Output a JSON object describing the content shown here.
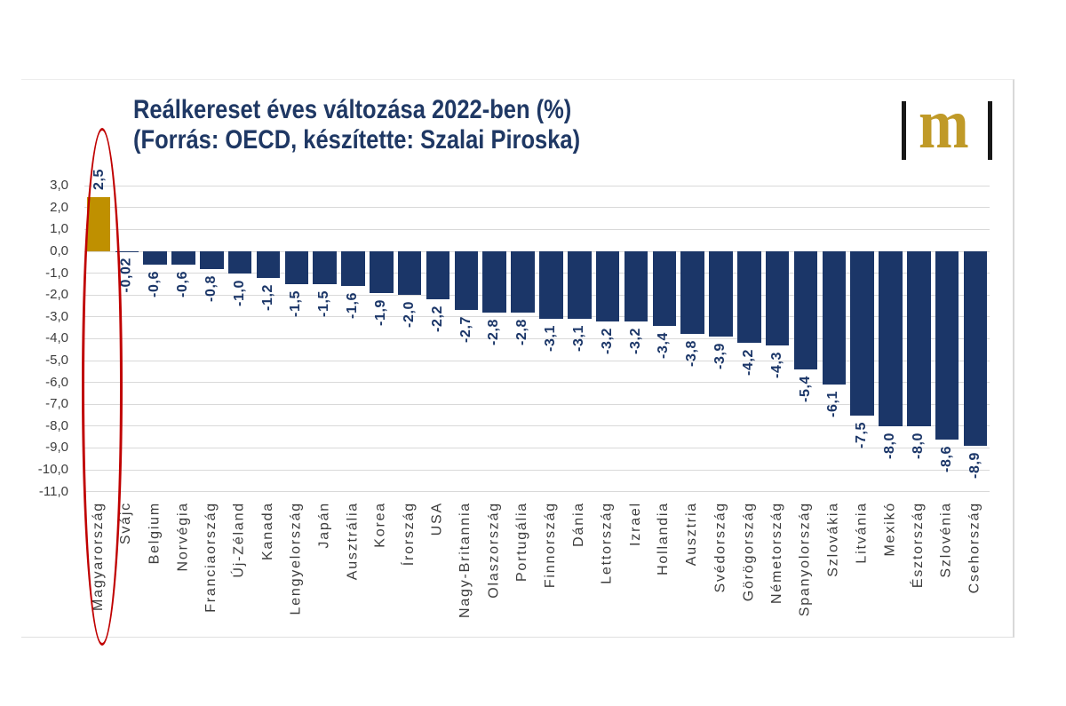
{
  "title": {
    "line1": "Reálkereset éves változása 2022-ben (%)",
    "line2": "(Forrás: OECD, készítette: Szalai Piroska)"
  },
  "logo": {
    "letter": "m",
    "letter_color": "#c09a28",
    "bar_color": "#181818"
  },
  "chart_data": {
    "type": "bar",
    "title": "Reálkereset éves változása 2022-ben (%)",
    "subtitle": "(Forrás: OECD, készítette: Szalai Piroska)",
    "categories": [
      "Magyarország",
      "Svájc",
      "Belgium",
      "Norvégia",
      "Franciaország",
      "Új-Zéland",
      "Kanada",
      "Lengyelország",
      "Japán",
      "Ausztrália",
      "Korea",
      "Írország",
      "USA",
      "Nagy-Britannia",
      "Olaszország",
      "Portugália",
      "Finnország",
      "Dánia",
      "Lettország",
      "Izrael",
      "Hollandia",
      "Ausztria",
      "Svédország",
      "Görögország",
      "Németország",
      "Spanyolország",
      "Szlovákia",
      "Litvánia",
      "Mexikó",
      "Észtország",
      "Szlovénia",
      "Csehország"
    ],
    "values": [
      2.5,
      -0.02,
      -0.6,
      -0.6,
      -0.8,
      -1.0,
      -1.2,
      -1.5,
      -1.5,
      -1.6,
      -1.9,
      -2.0,
      -2.2,
      -2.7,
      -2.8,
      -2.8,
      -3.1,
      -3.1,
      -3.2,
      -3.2,
      -3.4,
      -3.8,
      -3.9,
      -4.2,
      -4.3,
      -5.4,
      -6.1,
      -7.5,
      -8.0,
      -8.0,
      -8.6,
      -8.9
    ],
    "value_labels": [
      "2,5",
      "-0,02",
      "-0,6",
      "-0,6",
      "-0,8",
      "-1,0",
      "-1,2",
      "-1,5",
      "-1,5",
      "-1,6",
      "-1,9",
      "-2,0",
      "-2,2",
      "-2,7",
      "-2,8",
      "-2,8",
      "-3,1",
      "-3,1",
      "-3,2",
      "-3,2",
      "-3,4",
      "-3,8",
      "-3,9",
      "-4,2",
      "-4,3",
      "-5,4",
      "-6,1",
      "-7,5",
      "-8,0",
      "-8,0",
      "-8,6",
      "-8,9"
    ],
    "ylim": [
      -11,
      3
    ],
    "ytick_step": 1,
    "ytick_labels": [
      "3,0",
      "2,0",
      "1,0",
      "0,0",
      "-1,0",
      "-2,0",
      "-3,0",
      "-4,0",
      "-5,0",
      "-6,0",
      "-7,0",
      "-8,0",
      "-9,0",
      "-10,0",
      "-11,0"
    ],
    "grid": true,
    "legend": "none",
    "bar_color": "#1b3668",
    "highlight_index": 0,
    "highlight_color": "#bf9000",
    "annotation": {
      "shape": "ellipse",
      "color": "#c00000",
      "target": "Magyarország"
    }
  }
}
